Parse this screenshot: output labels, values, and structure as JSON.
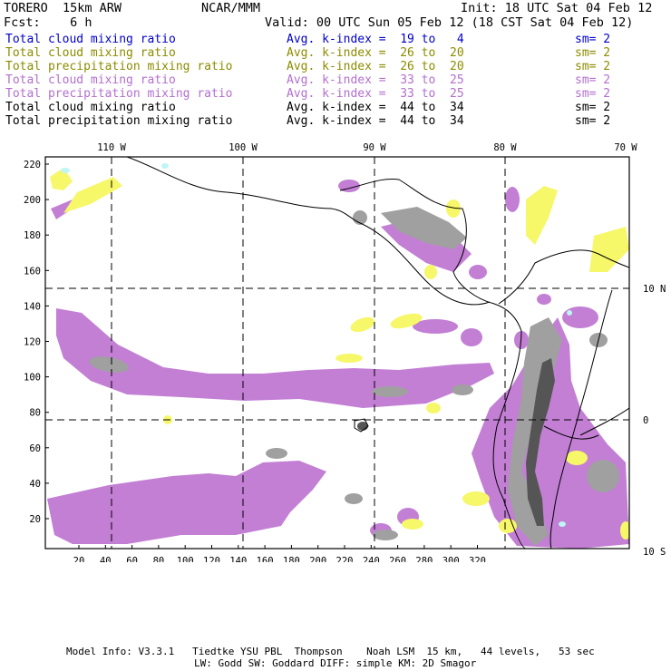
{
  "header": {
    "model": "TORERO  15km ARW",
    "center": "NCAR/MMM",
    "init": "Init: 18 UTC Sat 04 Feb 12",
    "fcst": "Fcst:    6 h",
    "valid": "Valid: 00 UTC Sun 05 Feb 12 (18 CST Sat 04 Feb 12)"
  },
  "legend": [
    {
      "label": "Total cloud mixing ratio",
      "stat": "Avg. k-index =  19 to   4",
      "sm": "sm= 2",
      "color": "#0000cc"
    },
    {
      "label": "Total cloud mixing ratio",
      "stat": "Avg. k-index =  26 to  20",
      "sm": "sm= 2",
      "color": "#8c8c00"
    },
    {
      "label": "Total precipitation mixing ratio",
      "stat": "Avg. k-index =  26 to  20",
      "sm": "sm= 2",
      "color": "#8c8c00"
    },
    {
      "label": "Total cloud mixing ratio",
      "stat": "Avg. k-index =  33 to  25",
      "sm": "sm= 2",
      "color": "#b36fd0"
    },
    {
      "label": "Total precipitation mixing ratio",
      "stat": "Avg. k-index =  33 to  25",
      "sm": "sm= 2",
      "color": "#b36fd0"
    },
    {
      "label": "Total cloud mixing ratio",
      "stat": "Avg. k-index =  44 to  34",
      "sm": "sm= 2",
      "color": "#000000"
    },
    {
      "label": "Total precipitation mixing ratio",
      "stat": "Avg. k-index =  44 to  34",
      "sm": "sm= 2",
      "color": "#000000"
    }
  ],
  "map": {
    "lon_labels": [
      "110 W",
      "100 W",
      "90 W",
      "80 W",
      "70 W"
    ],
    "lat_labels": [
      "10 N",
      "0",
      "10 S"
    ],
    "x_ticks": [
      "20",
      "40",
      "60",
      "80",
      "100",
      "120",
      "140",
      "160",
      "180",
      "200",
      "220",
      "240",
      "260",
      "280",
      "300",
      "320"
    ],
    "y_ticks": [
      "220",
      "200",
      "180",
      "160",
      "140",
      "120",
      "100",
      "80",
      "60",
      "40",
      "20"
    ],
    "colors": {
      "yellow": "#f7f76a",
      "purple": "#c27fd4",
      "gray": "#a0a0a0",
      "dark": "#555555",
      "cyan": "#bff5f5"
    }
  },
  "footer": {
    "line1": "Model Info: V3.3.1   Tiedtke YSU PBL  Thompson    Noah LSM  15 km,   44 levels,   53 sec",
    "line2": "LW: Godd SW: Goddard DIFF: simple KM: 2D Smagor"
  }
}
